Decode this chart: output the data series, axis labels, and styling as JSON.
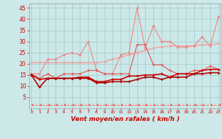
{
  "x": [
    0,
    1,
    2,
    3,
    4,
    5,
    6,
    7,
    8,
    9,
    10,
    11,
    12,
    13,
    14,
    15,
    16,
    17,
    18,
    19,
    20,
    21,
    22,
    23
  ],
  "series": [
    {
      "name": "line1_light_trend",
      "color": "#f0a0a0",
      "lw": 1.0,
      "marker": "D",
      "ms": 1.8,
      "y": [
        20.5,
        20.5,
        20.5,
        20.5,
        20.5,
        20.5,
        20.5,
        20.5,
        20.5,
        21,
        22,
        23,
        24,
        25,
        26,
        27,
        27.5,
        28,
        28,
        28,
        28,
        28.5,
        28.5,
        29
      ]
    },
    {
      "name": "line2_light_peak",
      "color": "#f08080",
      "lw": 0.8,
      "marker": "D",
      "ms": 1.8,
      "y": [
        15.5,
        15.5,
        22,
        22,
        24,
        25,
        24,
        30,
        17,
        15.5,
        15.5,
        24,
        25,
        45,
        27,
        37,
        30,
        30,
        27.5,
        27.5,
        28,
        32,
        28,
        41
      ]
    },
    {
      "name": "line3_medium",
      "color": "#e06060",
      "lw": 0.9,
      "marker": "D",
      "ms": 1.8,
      "y": [
        15.5,
        13.5,
        15.5,
        13.5,
        15.5,
        15.5,
        15.5,
        17,
        17,
        15.5,
        15.5,
        15.5,
        15.5,
        28.5,
        28.5,
        19.5,
        19.5,
        17,
        15.5,
        15.5,
        17,
        17,
        19,
        17.5
      ]
    },
    {
      "name": "line4_dark_base",
      "color": "#cc0000",
      "lw": 1.2,
      "marker": "D",
      "ms": 1.8,
      "y": [
        15,
        13,
        13.5,
        13.5,
        13.5,
        13.5,
        14,
        14,
        12,
        12,
        13,
        13,
        14.5,
        14.5,
        15,
        15,
        15.5,
        14,
        15.5,
        15.5,
        15.5,
        17,
        17.5,
        17.5
      ]
    },
    {
      "name": "line5_dark_low",
      "color": "#aa0000",
      "lw": 1.2,
      "marker": "D",
      "ms": 1.8,
      "y": [
        15,
        9.5,
        13.5,
        13.5,
        13.5,
        13.5,
        13.5,
        13.5,
        11.5,
        11.5,
        12,
        12,
        12,
        13,
        14,
        14,
        13,
        14,
        14,
        14,
        15.5,
        15.5,
        16,
        16
      ]
    },
    {
      "name": "line6_bottom_dashed",
      "color": "#ff6060",
      "lw": 0.7,
      "marker": 4,
      "ms": 2.5,
      "linestyle": "--",
      "y": [
        1.5,
        1.5,
        1.5,
        1.5,
        1.5,
        1.5,
        1.5,
        1.5,
        1.5,
        1.5,
        1.5,
        1.5,
        1.5,
        1.5,
        1.5,
        1.5,
        1.5,
        1.5,
        1.5,
        1.5,
        1.5,
        1.5,
        1.5,
        1.5
      ]
    }
  ],
  "xlim": [
    -0.3,
    23.3
  ],
  "ylim": [
    0,
    47
  ],
  "yticks": [
    5,
    10,
    15,
    20,
    25,
    30,
    35,
    40,
    45
  ],
  "xticks": [
    0,
    1,
    2,
    3,
    4,
    5,
    6,
    7,
    8,
    9,
    10,
    11,
    12,
    13,
    14,
    15,
    16,
    17,
    18,
    19,
    20,
    21,
    22,
    23
  ],
  "xlabel": "Vent moyen/en rafales ( km/h )",
  "background_color": "#cce8e8",
  "grid_color": "#aacccc",
  "tick_color": "#cc0000",
  "label_color": "#cc0000"
}
